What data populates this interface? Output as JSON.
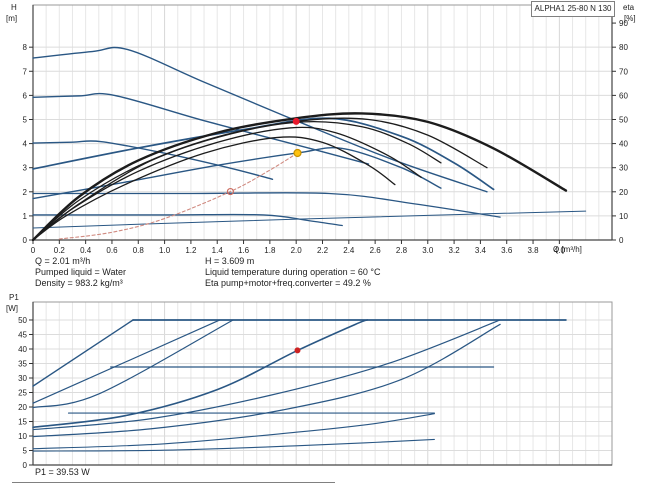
{
  "pump_name": "ALPHA1 25-80 N 130",
  "axis_labels": {
    "top_left_1": "H",
    "top_left_2": "[m]",
    "top_right_1": "eta",
    "top_right_2": "[%]",
    "x_unit": "Q [m³/h]",
    "bottom_left_1": "P1",
    "bottom_left_2": "[W]"
  },
  "info": {
    "q": "Q = 2.01 m³/h",
    "h": "H = 3.609 m",
    "pumped_liquid": "Pumped liquid = Water",
    "liquid_temp": "Liquid temperature during operation = 60 °C",
    "density": "Density = 983.2 kg/m³",
    "eta_total": "Eta pump+motor+freq.converter = 49.2 %"
  },
  "p1_result": "P1 = 39.53 W",
  "colors": {
    "curve_navy": "#2a5784",
    "curve_black": "#1c1c1c",
    "system_curve_red": "#d08a80",
    "duty_red": "#e8192c",
    "duty_yellow": "#ffc20e",
    "grid_minor": "#e7e7e7",
    "grid_major": "#d7d7d7",
    "border": "#9a9a9a",
    "axis": "#444444"
  },
  "chart_data": [
    {
      "type": "line",
      "title": "ALPHA1 25-80 N 130",
      "xlabel": "Q [m³/h]",
      "ylabel_left": "H [m]",
      "ylabel_right": "eta [%]",
      "xlim": [
        0,
        4.4
      ],
      "ylim_left": [
        0,
        9.75
      ],
      "ylim_right": [
        0,
        97.5
      ],
      "grid_x_step": 0.1,
      "x_ticks": [
        "0",
        "0.2",
        "0.4",
        "0.6",
        "0.8",
        "1.0",
        "1.2",
        "1.4",
        "1.6",
        "1.8",
        "2.0",
        "2.2",
        "2.4",
        "2.6",
        "2.8",
        "3.0",
        "3.2",
        "3.4",
        "3.6",
        "3.8",
        "4.0"
      ],
      "y_ticks_left": [
        "0",
        "1",
        "2",
        "3",
        "4",
        "5",
        "6",
        "7",
        "8"
      ],
      "y_ticks_right": [
        "0",
        "10",
        "20",
        "30",
        "40",
        "50",
        "60",
        "70",
        "80",
        "90"
      ],
      "series": [
        {
          "name": "fixed-speed-3",
          "axis": "left",
          "color": "#2a5784",
          "width": 1.4,
          "points": [
            [
              0,
              7.55
            ],
            [
              0.45,
              7.82
            ],
            [
              0.72,
              7.9
            ],
            [
              1.3,
              6.55
            ],
            [
              2.0,
              4.95
            ],
            [
              2.75,
              3.3
            ],
            [
              3.45,
              2.0
            ]
          ]
        },
        {
          "name": "fixed-speed-2",
          "axis": "left",
          "color": "#2a5784",
          "width": 1.4,
          "points": [
            [
              0,
              5.92
            ],
            [
              0.35,
              5.98
            ],
            [
              0.62,
              6.0
            ],
            [
              1.3,
              4.95
            ],
            [
              2.0,
              3.95
            ],
            [
              2.55,
              3.15
            ]
          ]
        },
        {
          "name": "fixed-speed-1",
          "axis": "left",
          "color": "#2a5784",
          "width": 1.4,
          "points": [
            [
              0,
              4.02
            ],
            [
              0.3,
              4.06
            ],
            [
              0.52,
              4.08
            ],
            [
              1.0,
              3.6
            ],
            [
              1.5,
              2.98
            ],
            [
              1.82,
              2.52
            ]
          ]
        },
        {
          "name": "prop-pressure-2",
          "axis": "left",
          "color": "#2a5784",
          "width": 1.7,
          "points": [
            [
              0,
              2.95
            ],
            [
              0.8,
              3.82
            ],
            [
              1.6,
              4.58
            ],
            [
              2.25,
              5.05
            ],
            [
              2.8,
              4.3
            ],
            [
              3.2,
              3.2
            ],
            [
              3.5,
              2.1
            ]
          ]
        },
        {
          "name": "prop-pressure-1",
          "axis": "left",
          "color": "#2a5784",
          "width": 1.4,
          "points": [
            [
              0,
              1.72
            ],
            [
              0.7,
              2.4
            ],
            [
              1.4,
              3.1
            ],
            [
              2.01,
              3.61
            ],
            [
              2.35,
              3.8
            ],
            [
              2.8,
              3.0
            ],
            [
              3.1,
              2.15
            ]
          ]
        },
        {
          "name": "const-pressure-2",
          "axis": "left",
          "color": "#2a5784",
          "width": 1.3,
          "points": [
            [
              0,
              1.93
            ],
            [
              1.2,
              1.93
            ],
            [
              2.25,
              1.93
            ],
            [
              2.9,
              1.5
            ],
            [
              3.55,
              0.95
            ]
          ]
        },
        {
          "name": "const-pressure-1",
          "axis": "left",
          "color": "#2a5784",
          "width": 1.3,
          "points": [
            [
              0,
              1.04
            ],
            [
              1.0,
              1.04
            ],
            [
              1.75,
              1.04
            ],
            [
              2.1,
              0.8
            ],
            [
              2.35,
              0.6
            ]
          ]
        },
        {
          "name": "min-curve",
          "axis": "left",
          "color": "#2a5784",
          "width": 1,
          "points": [
            [
              0,
              0.5
            ],
            [
              1.5,
              0.78
            ],
            [
              3.0,
              1.02
            ],
            [
              4.2,
              1.2
            ]
          ]
        },
        {
          "name": "eta-total",
          "axis": "right",
          "color": "#1c1c1c",
          "width": 2.4,
          "points": [
            [
              0,
              0
            ],
            [
              0.35,
              18
            ],
            [
              0.8,
              33
            ],
            [
              1.4,
              44.5
            ],
            [
              2.0,
              50.5
            ],
            [
              2.5,
              52.5
            ],
            [
              3.0,
              49
            ],
            [
              3.5,
              38
            ],
            [
              4.05,
              20.5
            ]
          ]
        },
        {
          "name": "eta-2",
          "axis": "right",
          "color": "#1c1c1c",
          "width": 1.3,
          "points": [
            [
              0,
              0
            ],
            [
              0.35,
              16.5
            ],
            [
              0.85,
              32
            ],
            [
              1.45,
              43.5
            ],
            [
              2.05,
              49.5
            ],
            [
              2.55,
              50
            ],
            [
              3.0,
              43.5
            ],
            [
              3.45,
              30
            ]
          ]
        },
        {
          "name": "eta-3",
          "axis": "right",
          "color": "#1c1c1c",
          "width": 1.3,
          "points": [
            [
              0,
              0
            ],
            [
              0.35,
              15
            ],
            [
              0.9,
              33
            ],
            [
              1.5,
              44
            ],
            [
              2.05,
              49
            ],
            [
              2.5,
              47
            ],
            [
              2.85,
              40
            ],
            [
              3.1,
              32
            ]
          ]
        },
        {
          "name": "eta-4",
          "axis": "right",
          "color": "#1c1c1c",
          "width": 1.3,
          "points": [
            [
              0,
              0
            ],
            [
              0.3,
              13
            ],
            [
              0.8,
              28.5
            ],
            [
              1.4,
              40.5
            ],
            [
              1.95,
              46.5
            ],
            [
              2.3,
              44.5
            ],
            [
              2.7,
              35
            ],
            [
              2.95,
              26
            ]
          ]
        },
        {
          "name": "eta-5",
          "axis": "right",
          "color": "#1c1c1c",
          "width": 1.3,
          "points": [
            [
              0,
              0
            ],
            [
              0.25,
              10
            ],
            [
              0.7,
              23
            ],
            [
              1.3,
              36
            ],
            [
              1.85,
              42.5
            ],
            [
              2.2,
              40.5
            ],
            [
              2.55,
              31
            ],
            [
              2.75,
              23
            ]
          ]
        },
        {
          "name": "system-curve",
          "axis": "left",
          "color": "#d08a80",
          "width": 1.1,
          "dash": "3 2.5",
          "points": [
            [
              0.2,
              0.04
            ],
            [
              0.6,
              0.32
            ],
            [
              1.0,
              0.89
            ],
            [
              1.5,
              2.01
            ],
            [
              1.8,
              2.9
            ],
            [
              2.01,
              3.61
            ]
          ]
        }
      ],
      "markers": [
        {
          "label": "eta-duty-point",
          "x": 2.0,
          "y": 49.2,
          "axis": "right",
          "r": 3.5,
          "fill": "#e8192c",
          "stroke": "none"
        },
        {
          "label": "head-duty-point",
          "x": 2.01,
          "y": 3.61,
          "axis": "left",
          "r": 3.5,
          "fill": "#ffc20e",
          "stroke": "#c79100"
        },
        {
          "label": "system-curve-point",
          "x": 1.5,
          "y": 2.01,
          "axis": "left",
          "r": 3,
          "fill": "none",
          "stroke": "#cc6a5e"
        }
      ]
    },
    {
      "type": "line",
      "title": "",
      "xlabel": "",
      "ylabel_left": "P1 [W]",
      "xlim": [
        0,
        4.4
      ],
      "ylim_left": [
        0,
        56.2
      ],
      "grid_x_step": 0.1,
      "x_ticks": [],
      "y_ticks_left": [
        "0",
        "5",
        "10",
        "15",
        "20",
        "25",
        "30",
        "35",
        "40",
        "45",
        "50"
      ],
      "series": [
        {
          "name": "power-cap-50w",
          "axis": "left",
          "color": "#2a5784",
          "width": 1.7,
          "points": [
            [
              0.76,
              50
            ],
            [
              4.05,
              50
            ]
          ]
        },
        {
          "name": "power-speed-3",
          "axis": "left",
          "color": "#2a5784",
          "width": 1.4,
          "points": [
            [
              0,
              27.2
            ],
            [
              0.76,
              50
            ]
          ]
        },
        {
          "name": "power-rise-a",
          "axis": "left",
          "color": "#2a5784",
          "width": 1.2,
          "points": [
            [
              0,
              21.3
            ],
            [
              1.42,
              50
            ]
          ]
        },
        {
          "name": "power-rise-b",
          "axis": "left",
          "color": "#2a5784",
          "width": 1.2,
          "points": [
            [
              0,
              19.8
            ],
            [
              0.5,
              24.5
            ],
            [
              1.52,
              50
            ]
          ]
        },
        {
          "name": "power-duty-curve",
          "axis": "left",
          "color": "#2a5784",
          "width": 1.6,
          "points": [
            [
              0,
              13
            ],
            [
              0.7,
              17
            ],
            [
              1.4,
              26
            ],
            [
              2.01,
              39.5
            ],
            [
              2.45,
              48.5
            ],
            [
              2.54,
              50
            ]
          ]
        },
        {
          "name": "power-rise-c",
          "axis": "left",
          "color": "#2a5784",
          "width": 1.2,
          "points": [
            [
              0,
              12.2
            ],
            [
              0.9,
              16
            ],
            [
              1.8,
              24
            ],
            [
              2.7,
              35
            ],
            [
              3.55,
              50
            ]
          ]
        },
        {
          "name": "power-rise-d",
          "axis": "left",
          "color": "#2a5784",
          "width": 1.2,
          "points": [
            [
              0,
              9.8
            ],
            [
              0.9,
              12.5
            ],
            [
              1.9,
              19
            ],
            [
              2.8,
              29.5
            ],
            [
              3.55,
              48.5
            ]
          ]
        },
        {
          "name": "power-cap-cp2",
          "axis": "left",
          "color": "#2a5784",
          "width": 1.2,
          "points": [
            [
              0.59,
              33.8
            ],
            [
              3.5,
              33.8
            ]
          ]
        },
        {
          "name": "power-cap-cp1",
          "axis": "left",
          "color": "#2a5784",
          "width": 1.2,
          "points": [
            [
              0.27,
              17.9
            ],
            [
              3.05,
              17.9
            ]
          ]
        },
        {
          "name": "power-low-e",
          "axis": "left",
          "color": "#2a5784",
          "width": 1.1,
          "points": [
            [
              0,
              5.6
            ],
            [
              1.0,
              7.3
            ],
            [
              2.0,
              11.3
            ],
            [
              2.6,
              14.3
            ],
            [
              3.05,
              17.7
            ]
          ]
        },
        {
          "name": "power-low-f",
          "axis": "left",
          "color": "#2a5784",
          "width": 1.1,
          "points": [
            [
              0,
              4.8
            ],
            [
              1.0,
              5.1
            ],
            [
              2.0,
              6.6
            ],
            [
              2.6,
              7.8
            ],
            [
              3.05,
              8.8
            ]
          ]
        }
      ],
      "markers": [
        {
          "label": "power-duty-point",
          "x": 2.01,
          "y": 39.53,
          "axis": "left",
          "r": 3,
          "fill": "#cc2222",
          "stroke": "none"
        }
      ]
    }
  ]
}
